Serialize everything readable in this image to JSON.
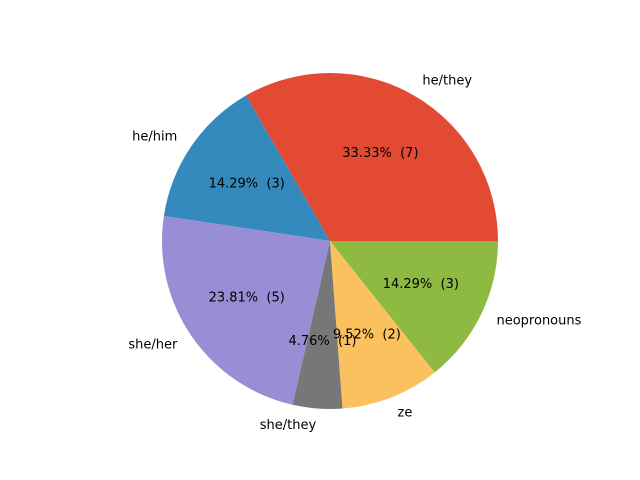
{
  "chart_data": {
    "type": "pie",
    "start_angle_deg": 0,
    "direction": "counterclockwise",
    "slices": [
      {
        "label": "he/they",
        "value": 7,
        "pct_text": "33.33%  (7)",
        "color": "#E24A33"
      },
      {
        "label": "he/him",
        "value": 3,
        "pct_text": "14.29%  (3)",
        "color": "#348ABD"
      },
      {
        "label": "she/her",
        "value": 5,
        "pct_text": "23.81%  (5)",
        "color": "#988ED5"
      },
      {
        "label": "she/they",
        "value": 1,
        "pct_text": "4.76%  (1)",
        "color": "#777777"
      },
      {
        "label": "ze",
        "value": 2,
        "pct_text": "9.52%  (2)",
        "color": "#FBC15E"
      },
      {
        "label": "neopronouns",
        "value": 3,
        "pct_text": "14.29%  (3)",
        "color": "#8EBA42"
      }
    ]
  }
}
